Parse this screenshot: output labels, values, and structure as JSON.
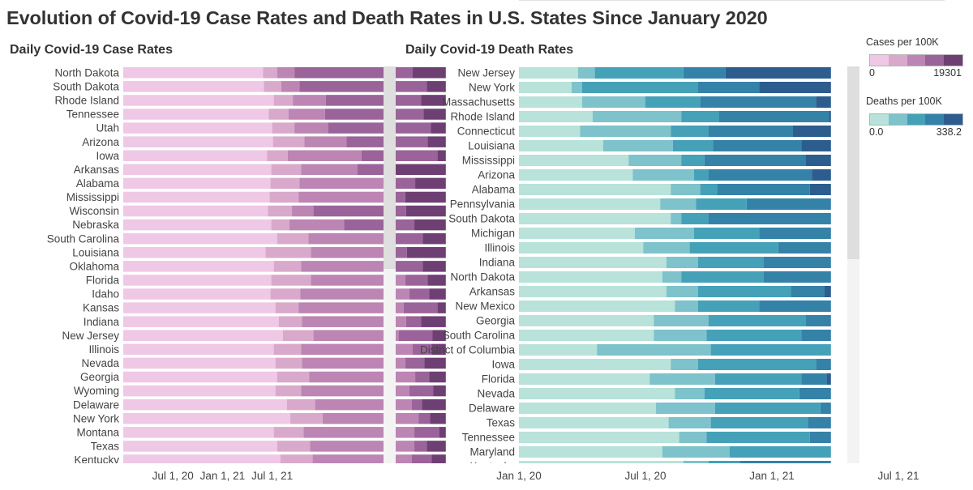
{
  "title": "Evolution of Covid-19 Case Rates and Death Rates in U.S. States Since January 2020",
  "legends": {
    "cases": {
      "title": "Cases per 100K",
      "min": "0",
      "max": "19301",
      "colors": [
        "#efc8e6",
        "#d9a9cc",
        "#bc85b4",
        "#9a6399",
        "#6e3f73"
      ]
    },
    "deaths": {
      "title": "Deaths per 100K",
      "min": "0.0",
      "max": "338.2",
      "colors": [
        "#b8e2da",
        "#7ec2cb",
        "#45a1b8",
        "#3582a8",
        "#2c5d8e"
      ]
    }
  },
  "chart_data": [
    {
      "type": "bar",
      "title": "Daily Covid-19 Case Rates",
      "stacked": "horizontal",
      "ticks": [
        "Jul 1, 20",
        "Jan 1, 21",
        "Jul 1, 21"
      ],
      "categories": [
        "North Dakota",
        "South Dakota",
        "Rhode Island",
        "Tennessee",
        "Utah",
        "Arizona",
        "Iowa",
        "Arkansas",
        "Alabama",
        "Mississippi",
        "Wisconsin",
        "Nebraska",
        "South Carolina",
        "Louisiana",
        "Oklahoma",
        "Florida",
        "Idaho",
        "Kansas",
        "Indiana",
        "New Jersey",
        "Illinois",
        "Nevada",
        "Georgia",
        "Wyoming",
        "Delaware",
        "New York",
        "Montana",
        "Texas",
        "Kentucky"
      ],
      "series_boundaries_months": [
        [
          17.9,
          19.6,
          21.7,
          36.0
        ],
        [
          18.0,
          20.1,
          22.3,
          37.7
        ],
        [
          19.2,
          21.5,
          25.5,
          37.0
        ],
        [
          18.6,
          21.0,
          25.4,
          37.3
        ],
        [
          19.0,
          21.7,
          25.8,
          38.2
        ],
        [
          19.1,
          22.9,
          28.0,
          37.8
        ],
        [
          18.4,
          20.9,
          29.8,
          39.0
        ],
        [
          18.9,
          22.5,
          29.3,
          33.3
        ],
        [
          18.8,
          22.3,
          33.2,
          36.3
        ],
        [
          18.7,
          22.2,
          32.7,
          35.1
        ],
        [
          18.5,
          21.4,
          24.0,
          35.2
        ],
        [
          18.9,
          21.1,
          27.7,
          36.2
        ],
        [
          19.6,
          23.4,
          33.0,
          37.2
        ],
        [
          18.2,
          23.7,
          33.3,
          35.3
        ],
        [
          19.2,
          22.5,
          33.3,
          37.2
        ],
        [
          18.9,
          23.7,
          35.1,
          37.8
        ],
        [
          18.8,
          22.4,
          35.6,
          38.0
        ],
        [
          19.4,
          22.2,
          34.9,
          39.0
        ],
        [
          19.8,
          22.6,
          35.2,
          37.0
        ],
        [
          20.3,
          24.0,
          34.3,
          38.4
        ],
        [
          19.2,
          22.5,
          36.0,
          38.3
        ],
        [
          19.4,
          22.6,
          35.1,
          37.4
        ],
        [
          19.6,
          23.5,
          36.3,
          38.0
        ],
        [
          19.4,
          22.5,
          35.6,
          38.5
        ],
        [
          20.8,
          24.2,
          35.9,
          37.1
        ],
        [
          21.2,
          25.1,
          36.7,
          38.1
        ],
        [
          19.2,
          22.8,
          36.2,
          39.2
        ],
        [
          19.6,
          23.6,
          36.2,
          37.7
        ],
        [
          20.0,
          23.9,
          35.9,
          38.3
        ]
      ]
    },
    {
      "type": "bar",
      "title": "Daily Covid-19 Death Rates",
      "stacked": "horizontal",
      "ticks": [
        "Jan 1, 20",
        "Jul 1, 20",
        "Jan 1, 21",
        "Jul 1, 21"
      ],
      "categories": [
        "New Jersey",
        "New York",
        "Massachusetts",
        "Rhode Island",
        "Connecticut",
        "Louisiana",
        "Mississippi",
        "Arizona",
        "Alabama",
        "Pennsylvania",
        "South Dakota",
        "Michigan",
        "Illinois",
        "Indiana",
        "North Dakota",
        "Arkansas",
        "New Mexico",
        "Georgia",
        "South Carolina",
        "District of Columbia",
        "Iowa",
        "Florida",
        "Nevada",
        "Delaware",
        "Texas",
        "Tennessee",
        "Maryland",
        "Kentucky"
      ],
      "series_boundaries_months": [
        [
          2.8,
          3.6,
          7.8,
          9.8
        ],
        [
          2.5,
          3.0,
          8.5,
          11.4
        ],
        [
          3.0,
          6.0,
          8.6,
          14.1
        ],
        [
          3.5,
          7.7,
          9.5,
          14.7
        ],
        [
          2.9,
          7.2,
          9.0,
          13.0
        ],
        [
          4.0,
          7.3,
          9.2,
          13.4
        ],
        [
          5.2,
          7.7,
          8.8,
          13.6
        ],
        [
          5.4,
          8.3,
          9.0,
          13.9
        ],
        [
          7.2,
          8.6,
          9.4,
          13.8
        ],
        [
          6.7,
          8.4,
          10.8,
          14.8
        ],
        [
          7.2,
          7.7,
          9.0,
          14.8
        ],
        [
          5.5,
          8.3,
          11.4,
          14.8
        ],
        [
          5.9,
          8.1,
          12.3,
          14.8
        ],
        [
          7.0,
          8.5,
          11.6,
          14.8
        ],
        [
          6.8,
          7.7,
          11.6,
          14.8
        ],
        [
          7.0,
          8.5,
          12.9,
          14.5
        ],
        [
          7.4,
          8.5,
          11.4,
          14.8
        ],
        [
          6.4,
          9.0,
          13.6,
          14.8
        ],
        [
          6.4,
          8.9,
          13.4,
          14.8
        ],
        [
          3.7,
          9.1,
          14.8,
          14.8
        ],
        [
          7.2,
          8.5,
          14.1,
          14.8
        ],
        [
          6.2,
          9.3,
          13.4,
          14.6
        ],
        [
          7.4,
          8.8,
          13.3,
          14.8
        ],
        [
          6.5,
          9.3,
          14.3,
          14.8
        ],
        [
          7.1,
          9.1,
          13.7,
          14.8
        ],
        [
          7.6,
          8.9,
          13.8,
          14.8
        ],
        [
          6.8,
          10.0,
          14.8,
          14.8
        ],
        [
          7.8,
          9.0,
          10.5,
          14.8
        ]
      ]
    }
  ]
}
